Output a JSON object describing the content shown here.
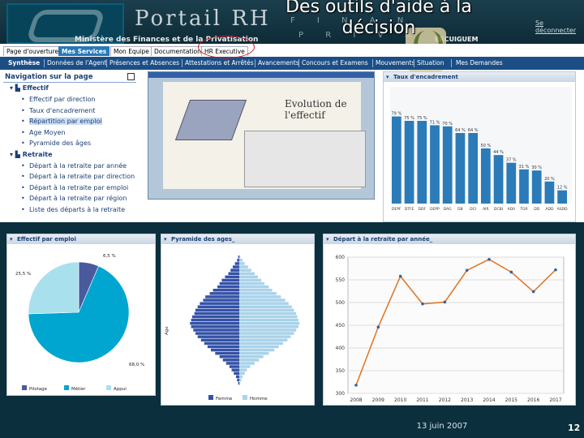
{
  "header": {
    "brand": "Portail RH",
    "ministry": "Ministère des Finances et de la Privatisation",
    "letters_top": "F I N A N",
    "letters_bottom": "P R I V A",
    "link": "Se déconnecter",
    "right_text": "ERCUIGUEM"
  },
  "title": "Des outils d'aide à la décision",
  "tabs": [
    {
      "label": "Page d'ouverture",
      "active": false
    },
    {
      "label": "Mes Services",
      "active": true
    },
    {
      "label": "Mon Equipe",
      "active": false
    },
    {
      "label": "Documentation",
      "active": false
    },
    {
      "label": "HR Executive",
      "active": false
    }
  ],
  "subnav": [
    "Synthèse",
    "Données de l'Agent",
    "Présences et Absences",
    "Attestations et Arrêtés",
    "Avancements",
    "Concours et Examens",
    "Mouvements",
    "Situation",
    "Mes Demandes"
  ],
  "leftnav": {
    "title": "Navigation sur la page",
    "groups": [
      {
        "label": "Effectif",
        "items": [
          "Effectif par direction",
          "Taux d'encadrement",
          "Répartition par emploi",
          "Age Moyen",
          "Pyramide des âges"
        ],
        "selected": 2
      },
      {
        "label": "Retraite",
        "items": [
          "Départ à la retraite par année",
          "Départ à la retraite par direction",
          "Départ à la retraite par emploi",
          "Départ à la retraite par région",
          "Liste des départs à la retraite"
        ]
      }
    ]
  },
  "embedded": {
    "title": "Evolution de l'effectif"
  },
  "cards": {
    "taux": "Taux d'encadrement",
    "effectif": "Effectif par emploi",
    "pyramide": "Pyramide des ages_",
    "depart": "Départ à la retraite par année_"
  },
  "chart_data": [
    {
      "type": "bar",
      "title": "Taux d'encadrement",
      "categories": [
        "DEPF",
        "DTFE",
        "DDF",
        "DEPP",
        "DAG",
        "DB",
        "DCI",
        "AIR",
        "DCBI",
        "ADII",
        "TGR",
        "DD",
        "ADD",
        "ASDD"
      ],
      "values": [
        79,
        75,
        75,
        71,
        70,
        64,
        64,
        50,
        44,
        37,
        31,
        30,
        20,
        12
      ],
      "data_labels": [
        "79 %",
        "75 %",
        "75 %",
        "71 %",
        "70 %",
        "64 %",
        "64 %",
        "50 %",
        "44 %",
        "37 %",
        "31 %",
        "30 %",
        "20 %",
        "12 %"
      ],
      "color": "#2b7bb8"
    },
    {
      "type": "pie",
      "title": "Effectif par emploi",
      "slices": [
        {
          "name": "Pilotage",
          "value": 6.5,
          "label": "6,5 %",
          "color": "#4b5a9c"
        },
        {
          "name": "Métier",
          "value": 68.0,
          "label": "68,0 %",
          "color": "#00a6cf"
        },
        {
          "name": "Appui",
          "value": 25.5,
          "label": "25,5 %",
          "color": "#a9e0ee"
        }
      ],
      "legend": "bottom"
    },
    {
      "type": "bar",
      "title": "Pyramide des ages",
      "xlabel": "",
      "ylabel": "Age",
      "series": [
        {
          "name": "Femme",
          "color": "#3452a8",
          "values": [
            1,
            2,
            4,
            6,
            8,
            10,
            13,
            16,
            18,
            20,
            24,
            27,
            31,
            33,
            36,
            38,
            40,
            41,
            43,
            44,
            45,
            44,
            42,
            40,
            38,
            35,
            32,
            29,
            26,
            22,
            18,
            15,
            12,
            9,
            7,
            5,
            3,
            2,
            1
          ]
        },
        {
          "name": "Homme",
          "color": "#a9d3ea",
          "values": [
            1,
            3,
            5,
            8,
            11,
            14,
            17,
            20,
            23,
            27,
            30,
            34,
            38,
            42,
            45,
            48,
            50,
            52,
            53,
            54,
            55,
            54,
            52,
            50,
            47,
            44,
            40,
            36,
            32,
            27,
            22,
            18,
            14,
            10,
            7,
            5,
            3,
            2,
            1
          ]
        }
      ],
      "legend": "bottom"
    },
    {
      "type": "line",
      "title": "Départ à la retraite par année",
      "x": [
        "2008",
        "2009",
        "2010",
        "2011",
        "2012",
        "2013",
        "2014",
        "2015",
        "2016",
        "2017"
      ],
      "y": [
        318,
        446,
        558,
        497,
        501,
        571,
        595,
        567,
        524,
        572
      ],
      "ylim": [
        300,
        600
      ],
      "yticks": [
        300,
        350,
        400,
        450,
        500,
        550,
        600
      ],
      "color": "#e07a2a",
      "marker_color": "#3260a8",
      "grid": true
    }
  ],
  "footer": {
    "date": "13 juin 2007",
    "page": "12"
  }
}
